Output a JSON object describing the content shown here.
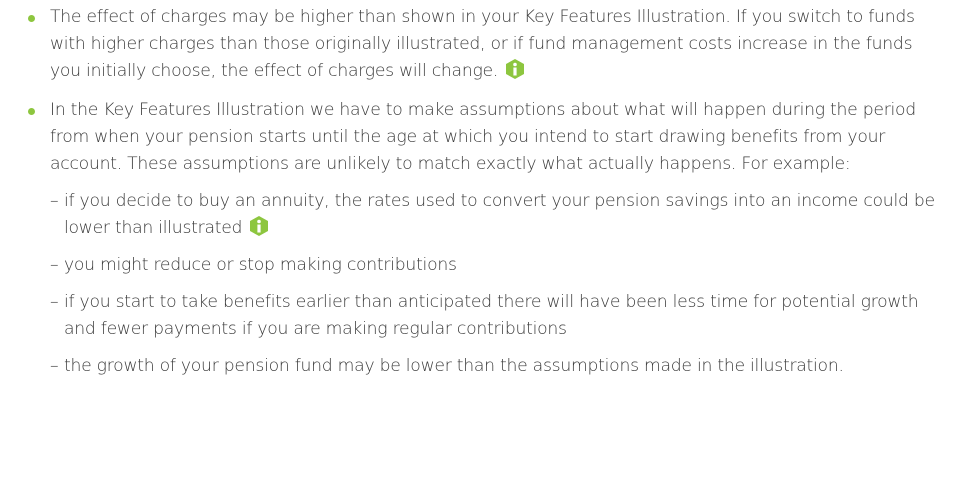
{
  "bullets": [
    {
      "text": "The effect of charges may be higher than shown in your Key Features Illustration. If you switch to funds with higher charges than those originally illustrated, or if fund management costs increase in the funds you initially choose, the effect of charges will change."
    },
    {
      "text": "In the Key Features Illustration we have to make assumptions about what will happen during the period from when your pension starts until the age at which you intend to start drawing benefits from your account. These assumptions are unlikely to match exactly what actually happens. For example:",
      "subitems": [
        "if you decide to buy an annuity, the rates used to convert your pension savings into an income could be lower than illustrated",
        "you might reduce or stop making contributions",
        "if you start to take benefits earlier than anticipated there will have been less time for potential growth and fewer payments if you are making regular contributions",
        "the growth of your pension fund may be lower than the assumptions made in the illustration."
      ]
    }
  ]
}
